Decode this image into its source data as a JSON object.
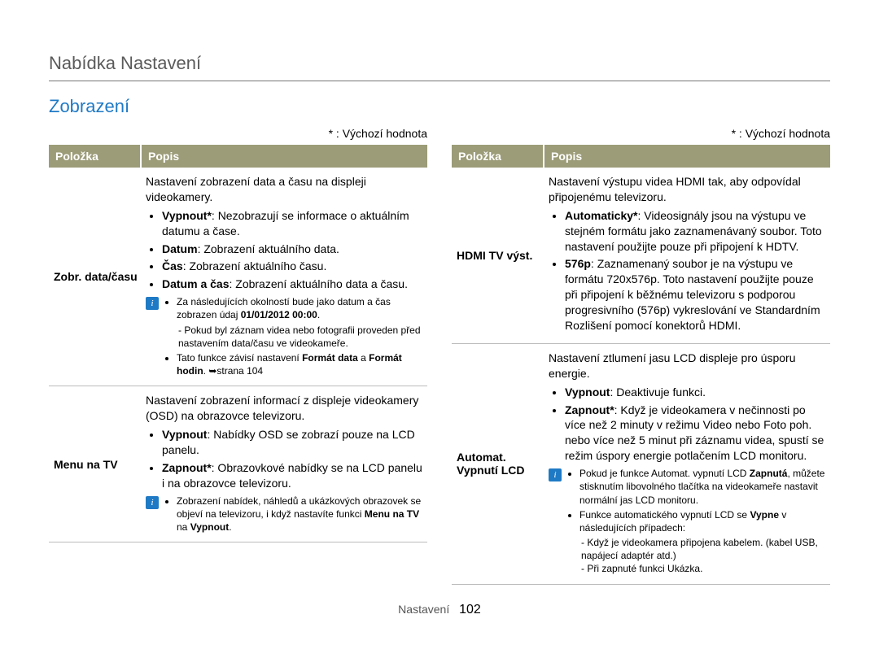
{
  "page_title": "Nabídka Nastavení",
  "section_title": "Zobrazení",
  "default_note": "* : Výchozí hodnota",
  "columns_header": {
    "item": "Položka",
    "desc": "Popis"
  },
  "left": [
    {
      "item": "Zobr. data/času",
      "intro": "Nastavení zobrazení data a času na displeji videokamery.",
      "bullets": [
        {
          "b": "Vypnout*",
          "t": ": Nezobrazují se informace o aktuálním datumu a čase."
        },
        {
          "b": "Datum",
          "t": ": Zobrazení aktuálního data."
        },
        {
          "b": "Čas",
          "t": ": Zobrazení aktuálního času."
        },
        {
          "b": "Datum a čas",
          "t": ": Zobrazení aktuálního data a času."
        }
      ],
      "note": [
        "Za následujících okolností bude jako datum a čas zobrazen údaj <b>01/01/2012 00:00</b>.",
        "- Pokud byl záznam videa nebo fotografii proveden před nastavením data/času ve videokameře.",
        "Tato funkce závisí nastavení <b>Formát data</b> a <b>Formát hodin</b>. ➥strana 104"
      ],
      "note_nested": true
    },
    {
      "item": "Menu na TV",
      "intro": "Nastavení zobrazení informací z displeje videokamery (OSD) na obrazovce televizoru.",
      "bullets": [
        {
          "b": "Vypnout",
          "t": ": Nabídky OSD se zobrazí pouze na LCD panelu."
        },
        {
          "b": "Zapnout*",
          "t": ": Obrazovkové nabídky se na LCD panelu i na obrazovce televizoru."
        }
      ],
      "note": [
        "Zobrazení nabídek, náhledů a ukázkových obrazovek se objeví na televizoru, i když nastavíte funkci <b>Menu na TV</b> na <b>Vypnout</b>."
      ]
    }
  ],
  "right": [
    {
      "item": "HDMI TV výst.",
      "intro": "Nastavení výstupu videa HDMI tak, aby odpovídal připojenému televizoru.",
      "bullets": [
        {
          "b": "Automaticky*",
          "t": ": Videosignály jsou na výstupu ve stejném formátu jako zaznamenávaný soubor. Toto nastavení použijte pouze při připojení k HDTV."
        },
        {
          "b": "576p",
          "t": ": Zaznamenaný soubor je na výstupu ve formátu 720x576p. Toto nastavení použijte pouze při připojení k běžnému televizoru s podporou progresivního (576p) vykreslování ve Standardním Rozlišení pomocí konektorů HDMI."
        }
      ]
    },
    {
      "item": "Automat. Vypnutí LCD",
      "intro": "Nastavení ztlumení jasu LCD displeje pro úsporu energie.",
      "bullets": [
        {
          "b": "Vypnout",
          "t": ": Deaktivuje funkci."
        },
        {
          "b": "Zapnout*",
          "t": ": Když je videokamera v nečinnosti po více než 2 minuty v režimu Video nebo Foto poh. nebo více než 5 minut při záznamu videa, spustí se režim úspory energie potlačením LCD monitoru."
        }
      ],
      "note": [
        "Pokud je funkce Automat. vypnutí LCD <b>Zapnutá</b>, můžete stisknutím libovolného tlačítka na videokameře nastavit normální jas LCD monitoru.",
        "Funkce automatického vypnutí LCD se <b>Vypne</b> v následujících případech:",
        "- Když je videokamera připojena kabelem. (kabel USB, napájecí adaptér atd.)",
        "- Při zapnuté funkci Ukázka."
      ],
      "note_nested2": true
    }
  ],
  "footer_label": "Nastavení",
  "page_number": "102"
}
